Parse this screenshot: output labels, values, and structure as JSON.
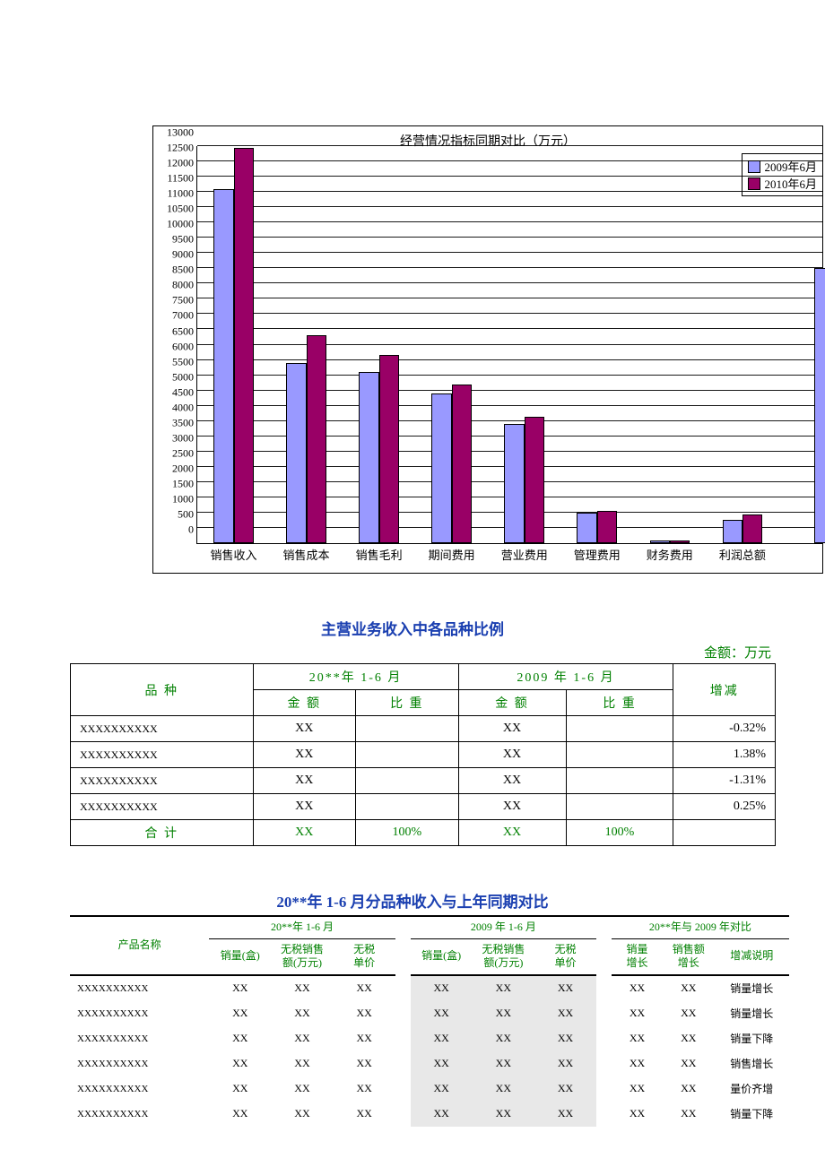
{
  "chart": {
    "title": "经营情况指标同期对比（万元）",
    "title_fontsize": 14,
    "background_color": "#ffffff",
    "axis_color": "#000000",
    "grid_color": "#000000",
    "ylim": [
      0,
      13000
    ],
    "ytick_step": 500,
    "categories": [
      "销售收入",
      "销售成本",
      "销售毛利",
      "期间费用",
      "营业费用",
      "管理费用",
      "财务费用",
      "利润总额"
    ],
    "legend": [
      {
        "label": "2009年6月",
        "color": "#9999ff"
      },
      {
        "label": "2010年6月",
        "color": "#990066"
      }
    ],
    "series": [
      {
        "name": "2009年6月",
        "color": "#9999ff",
        "values": [
          11600,
          5900,
          5600,
          4900,
          3900,
          1000,
          80,
          750
        ]
      },
      {
        "name": "2010年6月",
        "color": "#990066",
        "values": [
          12950,
          6800,
          6150,
          5200,
          4150,
          1050,
          80,
          950
        ]
      }
    ],
    "bar_border_color": "#000000",
    "bar_group_width": 0.55,
    "partial_bar_right": 9000
  },
  "section1": {
    "title": "主营业务收入中各品种比例",
    "unit": "金额：万元"
  },
  "table1": {
    "header": {
      "variety": "品 种",
      "period_a": "20**年 1-6 月",
      "period_b": "2009 年 1-6 月",
      "amount": "金 额",
      "weight": "比 重",
      "diff": "增减"
    },
    "rows": [
      {
        "variety": "XXXXXXXXXX",
        "a_amount": "XX",
        "a_weight": "",
        "b_amount": "XX",
        "b_weight": "",
        "diff": "-0.32%"
      },
      {
        "variety": "XXXXXXXXXX",
        "a_amount": "XX",
        "a_weight": "",
        "b_amount": "XX",
        "b_weight": "",
        "diff": "1.38%"
      },
      {
        "variety": "XXXXXXXXXX",
        "a_amount": "XX",
        "a_weight": "",
        "b_amount": "XX",
        "b_weight": "",
        "diff": "-1.31%"
      },
      {
        "variety": "XXXXXXXXXX",
        "a_amount": "XX",
        "a_weight": "",
        "b_amount": "XX",
        "b_weight": "",
        "diff": "0.25%"
      }
    ],
    "total": {
      "label": "合   计",
      "a_amount": "XX",
      "a_weight": "100%",
      "b_amount": "XX",
      "b_weight": "100%",
      "diff": ""
    }
  },
  "section2": {
    "title": "20**年 1-6 月分品种收入与上年同期对比"
  },
  "table2": {
    "header": {
      "product": "产品名称",
      "period_a": "20**年 1-6 月",
      "period_b": "2009 年 1-6 月",
      "period_c": "20**年与 2009 年对比",
      "qty": "销量(盒)",
      "rev": "无税销售\n额(万元)",
      "price": "无税\n单价",
      "qty_growth": "销量\n增长",
      "rev_growth": "销售额\n增长",
      "note": "增减说明"
    },
    "rows": [
      {
        "product": "XXXXXXXXXX",
        "a_qty": "XX",
        "a_rev": "XX",
        "a_price": "XX",
        "b_qty": "XX",
        "b_rev": "XX",
        "b_price": "XX",
        "qg": "XX",
        "rg": "XX",
        "note": "销量增长"
      },
      {
        "product": "XXXXXXXXXX",
        "a_qty": "XX",
        "a_rev": "XX",
        "a_price": "XX",
        "b_qty": "XX",
        "b_rev": "XX",
        "b_price": "XX",
        "qg": "XX",
        "rg": "XX",
        "note": "销量增长"
      },
      {
        "product": "XXXXXXXXXX",
        "a_qty": "XX",
        "a_rev": "XX",
        "a_price": "XX",
        "b_qty": "XX",
        "b_rev": "XX",
        "b_price": "XX",
        "qg": "XX",
        "rg": "XX",
        "note": "销量下降"
      },
      {
        "product": "XXXXXXXXXX",
        "a_qty": "XX",
        "a_rev": "XX",
        "a_price": "XX",
        "b_qty": "XX",
        "b_rev": "XX",
        "b_price": "XX",
        "qg": "XX",
        "rg": "XX",
        "note": "销售增长"
      },
      {
        "product": "XXXXXXXXXX",
        "a_qty": "XX",
        "a_rev": "XX",
        "a_price": "XX",
        "b_qty": "XX",
        "b_rev": "XX",
        "b_price": "XX",
        "qg": "XX",
        "rg": "XX",
        "note": "量价齐增"
      },
      {
        "product": "XXXXXXXXXX",
        "a_qty": "XX",
        "a_rev": "XX",
        "a_price": "XX",
        "b_qty": "XX",
        "b_rev": "XX",
        "b_price": "XX",
        "qg": "XX",
        "rg": "XX",
        "note": "销量下降"
      }
    ]
  }
}
